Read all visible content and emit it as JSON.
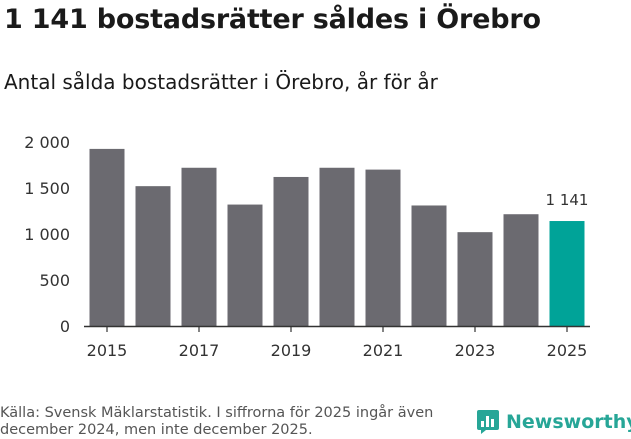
{
  "title": "1 141 bostadsrätter såldes i Örebro",
  "subtitle": "Antal sålda bostadsrätter i Örebro, år för år",
  "source": "Källa: Svensk Mäklarstatistik. I siffrorna för 2025 ingår även december 2024, men inte december 2025.",
  "brand": "Newsworthy",
  "colors": {
    "bar": "#6b6a70",
    "highlight": "#00a398",
    "axis": "#333333",
    "brand": "#27a697"
  },
  "chart_data": {
    "type": "bar",
    "title": "1 141 bostadsrätter såldes i Örebro",
    "subtitle": "Antal sålda bostadsrätter i Örebro, år för år",
    "xlabel": "",
    "ylabel": "",
    "categories": [
      "2015",
      "2016",
      "2017",
      "2018",
      "2019",
      "2020",
      "2021",
      "2022",
      "2023",
      "2024",
      "2025"
    ],
    "values": [
      1925,
      1520,
      1720,
      1320,
      1620,
      1720,
      1700,
      1310,
      1020,
      1215,
      1141
    ],
    "highlight_index": 10,
    "data_labels": [
      {
        "index": 10,
        "text": "1 141"
      }
    ],
    "x_tick_labels": [
      "2015",
      "2017",
      "2019",
      "2021",
      "2023",
      "2025"
    ],
    "y_ticks": [
      0,
      500,
      1000,
      1500,
      2000
    ],
    "y_tick_labels": [
      "0",
      "500",
      "1 000",
      "1 500",
      "2 000"
    ],
    "ylim": [
      0,
      2000
    ],
    "grid": false
  }
}
